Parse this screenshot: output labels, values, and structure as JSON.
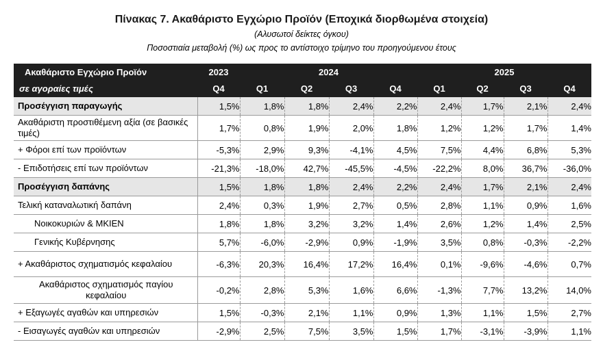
{
  "title": "Πίνακας 7. Ακαθάριστο Εγχώριο Προϊόν (Εποχικά διορθωμένα στοιχεία)",
  "subtitle": "(Αλυσωτοί δείκτες όγκου)",
  "subtitle2": "Ποσοστιαία μεταβολή (%) ως προς το αντίστοιχο τρίμηνο του προηγούμενου έτους",
  "header": {
    "row1_label": "Ακαθάριστο Εγχώριο Προϊόν",
    "row2_label": "σε αγοραίες τιμές",
    "years": [
      "2023",
      "2024",
      "2025"
    ],
    "quarters": [
      "Q4",
      "Q1",
      "Q2",
      "Q3",
      "Q4",
      "Q1",
      "Q2",
      "Q3",
      "Q4"
    ]
  },
  "rows": [
    {
      "label": "Προσέγγιση παραγωγής",
      "values": [
        "1,5%",
        "1,8%",
        "1,8%",
        "2,4%",
        "2,2%",
        "2,4%",
        "1,7%",
        "2,1%",
        "2,4%"
      ]
    },
    {
      "label": "Ακαθάριστη προστιθέμενη αξία (σε βασικές τιμές)",
      "values": [
        "1,7%",
        "0,8%",
        "1,9%",
        "2,0%",
        "1,8%",
        "1,2%",
        "1,2%",
        "1,7%",
        "1,4%"
      ]
    },
    {
      "label": "+  Φόροι επί των προϊόντων",
      "values": [
        "-5,3%",
        "2,9%",
        "9,3%",
        "-4,1%",
        "4,5%",
        "7,5%",
        "4,4%",
        "6,8%",
        "5,3%"
      ]
    },
    {
      "label": "-   Επιδοτήσεις επί των προϊόντων",
      "values": [
        "-21,3%",
        "-18,0%",
        "42,7%",
        "-45,5%",
        "-4,5%",
        "-22,2%",
        "8,0%",
        "36,7%",
        "-36,0%"
      ]
    },
    {
      "label": "Προσέγγιση δαπάνης",
      "values": [
        "1,5%",
        "1,8%",
        "1,8%",
        "2,4%",
        "2,2%",
        "2,4%",
        "1,7%",
        "2,1%",
        "2,4%"
      ]
    },
    {
      "label": "Τελική καταναλωτική δαπάνη",
      "values": [
        "2,4%",
        "0,3%",
        "1,9%",
        "2,7%",
        "0,5%",
        "2,8%",
        "1,1%",
        "0,9%",
        "1,6%"
      ]
    },
    {
      "label": "Νοικοκυριών & ΜΚΙΕΝ",
      "values": [
        "1,8%",
        "1,8%",
        "3,2%",
        "3,2%",
        "1,4%",
        "2,6%",
        "1,2%",
        "1,4%",
        "2,5%"
      ]
    },
    {
      "label": "Γενικής Κυβέρνησης",
      "values": [
        "5,7%",
        "-6,0%",
        "-2,9%",
        "0,9%",
        "-1,9%",
        "3,5%",
        "0,8%",
        "-0,3%",
        "-2,2%"
      ]
    },
    {
      "label": "+ Ακαθάριστος σχηματισμός κεφαλαίου",
      "values": [
        "-6,3%",
        "20,3%",
        "16,4%",
        "17,2%",
        "16,4%",
        "0,1%",
        "-9,6%",
        "-4,6%",
        "0,7%"
      ]
    },
    {
      "label": "Ακαθάριστος σχηματισμός παγίου κεφαλαίου",
      "values": [
        "-0,2%",
        "2,8%",
        "5,3%",
        "1,6%",
        "6,6%",
        "-1,3%",
        "7,7%",
        "13,2%",
        "14,0%"
      ]
    },
    {
      "label": "+ Εξαγωγές αγαθών και υπηρεσιών",
      "values": [
        "1,5%",
        "-0,3%",
        "2,1%",
        "1,1%",
        "0,9%",
        "1,3%",
        "1,1%",
        "1,5%",
        "2,7%"
      ]
    },
    {
      "label": "-  Εισαγωγές αγαθών και υπηρεσιών",
      "values": [
        "-2,9%",
        "2,5%",
        "7,5%",
        "3,5%",
        "1,5%",
        "1,7%",
        "-3,1%",
        "-3,9%",
        "1,1%"
      ]
    }
  ]
}
